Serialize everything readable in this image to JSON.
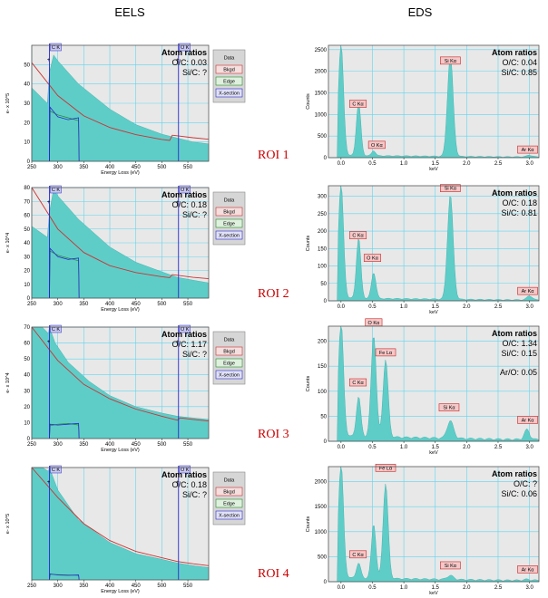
{
  "column_titles": {
    "eels": "EELS",
    "eds": "EDS"
  },
  "roi_labels": [
    "ROI 1",
    "ROI 2",
    "ROI 3",
    "ROI 4"
  ],
  "legend_items": [
    "Data",
    "Bkgd",
    "Edge",
    "X-section"
  ],
  "colors": {
    "fill": "#5ecdc8",
    "plot_bg": "#e8e8e8",
    "grid": "#5ed6ee",
    "edge_line": "#2a2acc",
    "bkgd_line": "#cc3333",
    "edge_curve": "#2a8a2a",
    "roi": "#cc0000",
    "tag_bg": "#f4c8c8",
    "tag_border": "#cc2222"
  },
  "chart_data": [
    {
      "type": "area",
      "panel": "EELS ROI 1",
      "xlabel": "Energy Loss (eV)",
      "ylabel": "e- x 10^5",
      "xlim": [
        250,
        590
      ],
      "ylim": [
        0,
        60
      ],
      "xticks": [
        250,
        300,
        350,
        400,
        450,
        500,
        550
      ],
      "yticks": [
        0,
        10,
        20,
        30,
        40,
        50
      ],
      "edges": [
        {
          "label": "C K",
          "x": 284
        },
        {
          "label": "O K",
          "x": 532
        }
      ],
      "data": {
        "x": [
          250,
          280,
          284,
          292,
          300,
          340,
          400,
          450,
          500,
          530,
          560,
          590
        ],
        "y": [
          38,
          30,
          46,
          55,
          52,
          40,
          27,
          19,
          14,
          12,
          10,
          9
        ]
      },
      "background": {
        "x": [
          250,
          300,
          350,
          400,
          450,
          500,
          515,
          520,
          560,
          590
        ],
        "y": [
          51,
          34,
          23.5,
          17.5,
          13.8,
          11.3,
          10.8,
          13.5,
          12.2,
          11.4
        ]
      },
      "edge": {
        "x": [
          284,
          285,
          300,
          320,
          340,
          341
        ],
        "y": [
          0,
          26,
          24,
          22.5,
          21,
          0
        ]
      },
      "xsection": {
        "x": [
          284,
          285,
          300,
          320,
          340,
          341
        ],
        "y": [
          0,
          28,
          23,
          21.5,
          22.5,
          0
        ]
      },
      "ratio_title": "Atom ratios",
      "ratios": [
        {
          "label": "O/C:",
          "value": "0.03"
        },
        {
          "label": "Si/C:",
          "value": "?"
        }
      ]
    },
    {
      "type": "area",
      "panel": "EELS ROI 2",
      "xlabel": "Energy Loss (eV)",
      "ylabel": "e- x 10^4",
      "xlim": [
        250,
        590
      ],
      "ylim": [
        0,
        80
      ],
      "xticks": [
        250,
        300,
        350,
        400,
        450,
        500,
        550
      ],
      "yticks": [
        0,
        10,
        20,
        30,
        40,
        50,
        60,
        70,
        80
      ],
      "edges": [
        {
          "label": "C K",
          "x": 284
        },
        {
          "label": "O K",
          "x": 532
        }
      ],
      "data": {
        "x": [
          250,
          280,
          284,
          292,
          300,
          340,
          400,
          450,
          500,
          530,
          560,
          590
        ],
        "y": [
          52,
          44,
          62,
          79,
          74,
          57,
          37,
          26,
          19,
          15,
          13,
          11
        ]
      },
      "background": {
        "x": [
          250,
          300,
          350,
          400,
          450,
          500,
          515,
          520,
          560,
          590
        ],
        "y": [
          80,
          50,
          33,
          23.5,
          18.5,
          15.5,
          14.8,
          17,
          15,
          14
        ]
      },
      "edge": {
        "x": [
          284,
          285,
          300,
          320,
          340,
          341
        ],
        "y": [
          0,
          34,
          31,
          29,
          27,
          0
        ]
      },
      "xsection": {
        "x": [
          284,
          285,
          300,
          320,
          340,
          341
        ],
        "y": [
          0,
          36,
          30,
          28,
          29,
          0
        ]
      },
      "ratio_title": "Atom ratios",
      "ratios": [
        {
          "label": "O/C:",
          "value": "0.18"
        },
        {
          "label": "Si/C:",
          "value": "?"
        }
      ]
    },
    {
      "type": "area",
      "panel": "EELS ROI 3",
      "xlabel": "Energy Loss (eV)",
      "ylabel": "e- x 10^4",
      "xlim": [
        250,
        590
      ],
      "ylim": [
        0,
        70
      ],
      "xticks": [
        250,
        300,
        350,
        400,
        450,
        500,
        550
      ],
      "yticks": [
        0,
        10,
        20,
        30,
        40,
        50,
        60,
        70
      ],
      "edges": [
        {
          "label": "C K",
          "x": 284
        },
        {
          "label": "O K",
          "x": 532
        }
      ],
      "data": {
        "x": [
          250,
          270,
          282,
          284,
          295,
          320,
          360,
          400,
          450,
          500,
          530,
          560,
          590
        ],
        "y": [
          70,
          70,
          66,
          70,
          60,
          48,
          36,
          27,
          20,
          16,
          14,
          13,
          12
        ]
      },
      "background": {
        "x": [
          250,
          300,
          350,
          400,
          450,
          500,
          530,
          535,
          560,
          590
        ],
        "y": [
          75,
          49,
          34,
          25,
          18.5,
          14,
          11.5,
          13,
          12,
          11
        ]
      },
      "edge": {
        "x": [
          284,
          285,
          300,
          320,
          340,
          341
        ],
        "y": [
          0,
          8,
          9,
          9.5,
          8.5,
          0
        ]
      },
      "xsection": {
        "x": [
          284,
          285,
          300,
          320,
          340,
          341
        ],
        "y": [
          0,
          9,
          8.5,
          9,
          9.5,
          0
        ]
      },
      "ratio_title": "Atom ratios",
      "ratios": [
        {
          "label": "O/C:",
          "value": "1.17"
        },
        {
          "label": "Si/C:",
          "value": "?"
        }
      ]
    },
    {
      "type": "area",
      "panel": "EELS ROI 4",
      "xlabel": "Energy Loss (eV)",
      "ylabel": "e- x 10^5",
      "xlim": [
        250,
        590
      ],
      "ylim": [
        0,
        30
      ],
      "xticks": [
        250,
        300,
        350,
        400,
        450,
        500,
        550
      ],
      "yticks": [],
      "edges": [
        {
          "label": "C K",
          "x": 284
        },
        {
          "label": "O K",
          "x": 532
        }
      ],
      "data": {
        "x": [
          250,
          270,
          282,
          284,
          300,
          340,
          400,
          450,
          500,
          530,
          560,
          590
        ],
        "y": [
          30,
          30,
          29,
          30,
          24,
          16,
          10,
          7,
          5.5,
          4.5,
          3.8,
          3.3
        ]
      },
      "background": {
        "x": [
          250,
          300,
          350,
          400,
          450,
          500,
          530,
          560,
          590
        ],
        "y": [
          30,
          22,
          15,
          10.5,
          7.6,
          5.9,
          4.9,
          4.3,
          3.8
        ]
      },
      "edge": {
        "x": [
          284,
          285,
          300,
          320,
          340,
          341
        ],
        "y": [
          0,
          1.5,
          1.4,
          1.3,
          1.2,
          0
        ]
      },
      "xsection": {
        "x": [
          284,
          285,
          300,
          320,
          340,
          341
        ],
        "y": [
          0,
          1.6,
          1.3,
          1.2,
          1.3,
          0
        ]
      },
      "ratio_title": "Atom ratios",
      "ratios": [
        {
          "label": "O/C:",
          "value": "0.18"
        },
        {
          "label": "Si/C:",
          "value": "?"
        }
      ]
    },
    {
      "type": "bar",
      "panel": "EDS ROI 1",
      "xlabel": "keV",
      "ylabel": "Counts",
      "xlim": [
        -0.2,
        3.15
      ],
      "ylim": [
        0,
        2600
      ],
      "xticks": [
        0.0,
        0.5,
        1.0,
        1.5,
        2.0,
        2.5,
        3.0
      ],
      "yticks": [
        0,
        500,
        1000,
        1500,
        2000,
        2500
      ],
      "peaks": [
        {
          "center": 0.0,
          "height": 2600,
          "width": 0.04
        },
        {
          "center": 0.28,
          "height": 1250,
          "width": 0.035
        },
        {
          "center": 0.52,
          "height": 120,
          "width": 0.03
        },
        {
          "center": 1.74,
          "height": 2350,
          "width": 0.045
        },
        {
          "center": 3.0,
          "height": 40,
          "width": 0.04
        }
      ],
      "baseline": 40,
      "tags": [
        {
          "label": "C Kα",
          "x": 0.27,
          "y": 1100
        },
        {
          "label": "O Kα",
          "x": 0.57,
          "y": 150
        },
        {
          "label": "Si Kα",
          "x": 1.74,
          "y": 2100
        },
        {
          "label": "Ar Kα",
          "x": 2.97,
          "y": 40
        }
      ],
      "ratio_title": "Atom ratios",
      "ratios": [
        {
          "label": "O/C:",
          "value": "0.04"
        },
        {
          "label": "Si/C:",
          "value": "0.85"
        }
      ]
    },
    {
      "type": "bar",
      "panel": "EDS ROI 2",
      "xlabel": "keV",
      "ylabel": "Counts",
      "xlim": [
        -0.2,
        3.15
      ],
      "ylim": [
        0,
        330
      ],
      "xticks": [
        0.0,
        0.5,
        1.0,
        1.5,
        2.0,
        2.5,
        3.0
      ],
      "yticks": [
        0,
        50,
        100,
        150,
        200,
        250,
        300
      ],
      "peaks": [
        {
          "center": 0.0,
          "height": 330,
          "width": 0.04
        },
        {
          "center": 0.28,
          "height": 175,
          "width": 0.035
        },
        {
          "center": 0.52,
          "height": 75,
          "width": 0.035
        },
        {
          "center": 1.74,
          "height": 300,
          "width": 0.045
        },
        {
          "center": 3.0,
          "height": 12,
          "width": 0.04
        }
      ],
      "baseline": 6,
      "tags": [
        {
          "label": "C Kα",
          "x": 0.27,
          "y": 170
        },
        {
          "label": "O Kα",
          "x": 0.5,
          "y": 105
        },
        {
          "label": "Si Kα",
          "x": 1.74,
          "y": 305
        },
        {
          "label": "Ar Kα",
          "x": 2.97,
          "y": 10
        }
      ],
      "ratio_title": "Atom ratios",
      "ratios": [
        {
          "label": "O/C:",
          "value": "0.18"
        },
        {
          "label": "Si/C:",
          "value": "0.81"
        }
      ]
    },
    {
      "type": "bar",
      "panel": "EDS ROI 3",
      "xlabel": "keV",
      "ylabel": "Counts",
      "xlim": [
        -0.2,
        3.15
      ],
      "ylim": [
        0,
        230
      ],
      "xticks": [
        0.0,
        0.5,
        1.0,
        1.5,
        2.0,
        2.5,
        3.0
      ],
      "yticks": [
        0,
        50,
        100,
        150,
        200
      ],
      "peaks": [
        {
          "center": 0.0,
          "height": 230,
          "width": 0.04
        },
        {
          "center": 0.28,
          "height": 80,
          "width": 0.035
        },
        {
          "center": 0.52,
          "height": 205,
          "width": 0.04
        },
        {
          "center": 0.71,
          "height": 155,
          "width": 0.04
        },
        {
          "center": 1.74,
          "height": 35,
          "width": 0.05
        },
        {
          "center": 2.96,
          "height": 20,
          "width": 0.04
        }
      ],
      "baseline": 8,
      "tags": [
        {
          "label": "C Kα",
          "x": 0.27,
          "y": 105
        },
        {
          "label": "O Kα",
          "x": 0.52,
          "y": 225
        },
        {
          "label": "Fe Lα",
          "x": 0.71,
          "y": 165
        },
        {
          "label": "Si Kα",
          "x": 1.72,
          "y": 55
        },
        {
          "label": "Ar Kα",
          "x": 2.97,
          "y": 30
        }
      ],
      "ratio_title": "Atom ratios",
      "ratios": [
        {
          "label": "O/C:",
          "value": "1.34"
        },
        {
          "label": "Si/C:",
          "value": "0.15"
        },
        {
          "label": "Ar/O:",
          "value": "0.05"
        }
      ]
    },
    {
      "type": "bar",
      "panel": "EDS ROI 4",
      "xlabel": "keV",
      "ylabel": "Counts",
      "xlim": [
        -0.2,
        3.15
      ],
      "ylim": [
        0,
        2300
      ],
      "xticks": [
        0.0,
        0.5,
        1.0,
        1.5,
        2.0,
        2.5,
        3.0
      ],
      "yticks": [
        0,
        500,
        1000,
        1500,
        2000
      ],
      "peaks": [
        {
          "center": 0.0,
          "height": 2300,
          "width": 0.04
        },
        {
          "center": 0.28,
          "height": 300,
          "width": 0.035
        },
        {
          "center": 0.52,
          "height": 1100,
          "width": 0.035
        },
        {
          "center": 0.71,
          "height": 1900,
          "width": 0.04
        },
        {
          "center": 1.74,
          "height": 80,
          "width": 0.05
        },
        {
          "center": 2.96,
          "height": 20,
          "width": 0.04
        }
      ],
      "baseline": 60,
      "tags": [
        {
          "label": "Fe Lα",
          "x": 0.71,
          "y": 2150
        },
        {
          "label": "C Kα",
          "x": 0.27,
          "y": 420
        },
        {
          "label": "Si Kα",
          "x": 1.74,
          "y": 200
        },
        {
          "label": "Ar Kα",
          "x": 2.97,
          "y": 120
        }
      ],
      "ratio_title": "Atom ratios",
      "ratios": [
        {
          "label": "O/C:",
          "value": "?"
        },
        {
          "label": "Si/C:",
          "value": "0.06"
        }
      ]
    }
  ]
}
